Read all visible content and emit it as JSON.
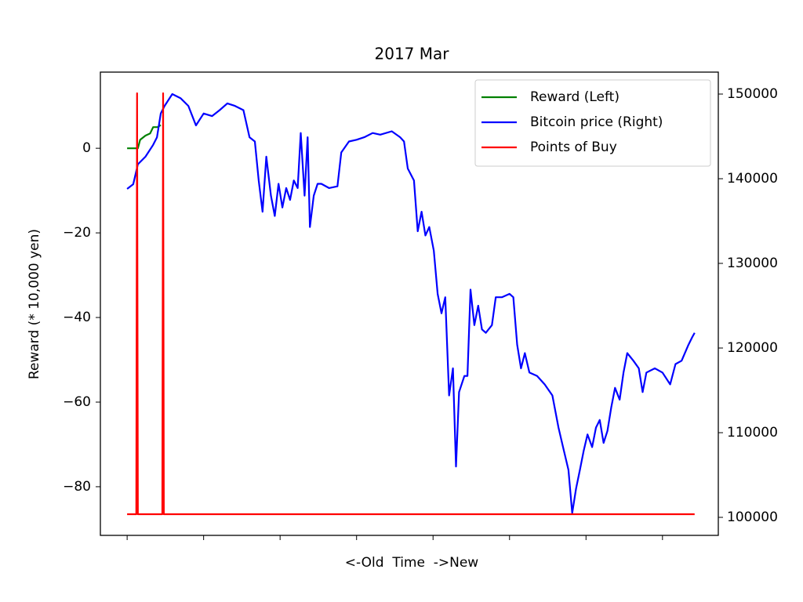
{
  "chart_data": {
    "type": "line",
    "title": "2017 Mar",
    "xlabel": "<-Old  Time  ->New",
    "ylabel": "Reward (* 10,000 yen)",
    "xlim": [
      -35,
      773
    ],
    "xticks": [
      0,
      100,
      200,
      300,
      400,
      500,
      600,
      700
    ],
    "ylim": [
      -91.5,
      18
    ],
    "yticks": [
      0,
      {
        "value": -20,
        "label": "−20"
      },
      {
        "value": -40,
        "label": "−40"
      },
      {
        "value": -60,
        "label": "−60"
      },
      {
        "value": -80,
        "label": "−80"
      }
    ],
    "y2lim": [
      97870,
      152593
    ],
    "y2ticks": [
      100000,
      110000,
      120000,
      130000,
      140000,
      150000
    ],
    "legend": "upper right",
    "series": [
      {
        "name": "Reward (Left)",
        "color": "#008000",
        "x": [
          0,
          14,
          17,
          24,
          30,
          34,
          40,
          44
        ],
        "values": [
          0,
          0,
          2,
          3,
          3.5,
          5,
          5,
          5.5
        ]
      },
      {
        "name": "Bitcoin price (Right)",
        "color": "#0000ff",
        "axis": "y2",
        "x": [
          0,
          8,
          14,
          24,
          34,
          39,
          44,
          49,
          59,
          70,
          80,
          90,
          100,
          111,
          121,
          131,
          141,
          152,
          160,
          167,
          172,
          177,
          182,
          188,
          193,
          198,
          203,
          208,
          213,
          218,
          223,
          227,
          232,
          236,
          239,
          244,
          249,
          254,
          264,
          275,
          280,
          290,
          300,
          310,
          321,
          331,
          346,
          357,
          362,
          367,
          375,
          380,
          385,
          390,
          395,
          401,
          406,
          411,
          416,
          421,
          426,
          430,
          434,
          441,
          445,
          449,
          454,
          459,
          464,
          469,
          477,
          482,
          490,
          500,
          505,
          510,
          515,
          520,
          526,
          536,
          546,
          556,
          564,
          570,
          577,
          582,
          587,
          592,
          597,
          602,
          608,
          613,
          618,
          623,
          628,
          633,
          638,
          644,
          649,
          654,
          662,
          669,
          674,
          679,
          690,
          700,
          710,
          717,
          725,
          734,
          739,
          742
        ],
        "values": [
          138800,
          139350,
          141700,
          142600,
          144000,
          144900,
          147700,
          148600,
          150000,
          149500,
          148600,
          146300,
          147700,
          147400,
          148100,
          148900,
          148600,
          148100,
          144900,
          144400,
          139800,
          136100,
          142600,
          138000,
          135600,
          139400,
          136600,
          138900,
          137500,
          139800,
          138900,
          145400,
          138000,
          144900,
          134300,
          138000,
          139400,
          139400,
          138900,
          139100,
          143100,
          144400,
          144600,
          144900,
          145400,
          145200,
          145600,
          144900,
          144400,
          141200,
          139800,
          133800,
          136100,
          133300,
          134300,
          131500,
          126400,
          124100,
          126000,
          114400,
          117600,
          106000,
          114800,
          116700,
          116700,
          126900,
          122700,
          125000,
          122200,
          121800,
          122700,
          126000,
          126000,
          126400,
          126000,
          120400,
          117600,
          119400,
          117100,
          116700,
          115700,
          114400,
          110600,
          108300,
          105600,
          100500,
          103400,
          105600,
          107900,
          109800,
          108300,
          110600,
          111500,
          108800,
          110200,
          113000,
          115300,
          113900,
          117100,
          119400,
          118500,
          117600,
          114800,
          117100,
          117600,
          117100,
          115700,
          118100,
          118500,
          120400,
          121300,
          121800
        ]
      },
      {
        "name": "Points of Buy",
        "color": "#ff0000",
        "x": [
          0,
          12,
          13,
          14,
          46,
          47,
          48,
          742
        ],
        "values": [
          -86.5,
          -86.5,
          13,
          -86.5,
          -86.5,
          13,
          -86.5,
          -86.5
        ]
      }
    ]
  }
}
